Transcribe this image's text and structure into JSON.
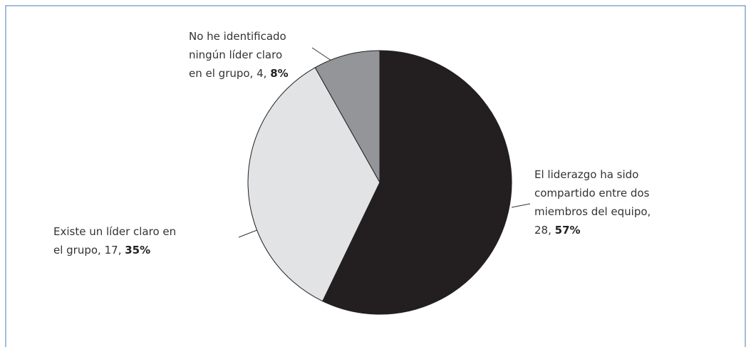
{
  "chart_data": {
    "type": "pie",
    "categories": [
      "El liderazgo ha sido compartido entre dos miembros del equipo,",
      "Existe un líder claro en el grupo,",
      "No he identificado ningún líder claro en el grupo,"
    ],
    "values": [
      28,
      17,
      4
    ],
    "value_labels": [
      "28,",
      "17,",
      "4,"
    ],
    "percentages": [
      57,
      35,
      8
    ],
    "percentage_labels": [
      "57%",
      "35%",
      "8%"
    ],
    "colors": [
      "#231f20",
      "#e2e3e5",
      "#939598"
    ]
  }
}
